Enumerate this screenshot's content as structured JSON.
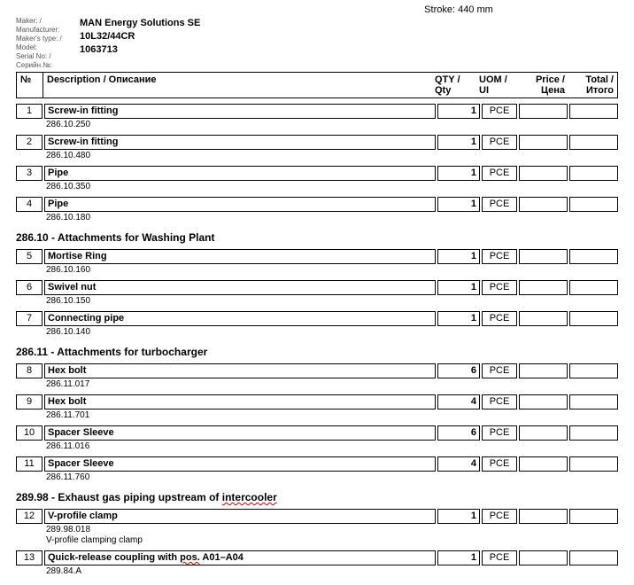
{
  "stroke": "Stroke: 440 mm",
  "meta": {
    "labels": {
      "maker": "Maker: /",
      "manufacturer": "Manufacturer:",
      "makers_type": "Maker's type: /",
      "model": "Model:",
      "serial_no": "Serial No: /",
      "serial_ru": "Серийн.№:"
    },
    "values": {
      "maker": "MAN Energy Solutions SE",
      "model": "10L32/44CR",
      "serial": "1063713"
    }
  },
  "header": {
    "no": "№",
    "desc": "Description / Описание",
    "qty": "QTY / Qty",
    "uom": "UOM / UI",
    "price": "Price / Цена",
    "total": "Total / Итого"
  },
  "sections": [
    {
      "title": null,
      "items": [
        {
          "no": "1",
          "desc": "Screw-in fitting",
          "code": "286.10.250",
          "qty": "1",
          "uom": "PCE"
        },
        {
          "no": "2",
          "desc": "Screw-in fitting",
          "code": "286.10.480",
          "qty": "1",
          "uom": "PCE"
        },
        {
          "no": "3",
          "desc": "Pipe",
          "code": "286.10.350",
          "qty": "1",
          "uom": "PCE"
        },
        {
          "no": "4",
          "desc": "Pipe",
          "code": "286.10.180",
          "qty": "1",
          "uom": "PCE"
        }
      ]
    },
    {
      "title": "286.10 - Attachments for Washing Plant",
      "items": [
        {
          "no": "5",
          "desc": "Mortise Ring",
          "code": "286.10.160",
          "qty": "1",
          "uom": "PCE"
        },
        {
          "no": "6",
          "desc": "Swivel nut",
          "code": "286.10.150",
          "qty": "1",
          "uom": "PCE"
        },
        {
          "no": "7",
          "desc": "Connecting pipe",
          "code": "286.10.140",
          "qty": "1",
          "uom": "PCE"
        }
      ]
    },
    {
      "title": "286.11 - Attachments for turbocharger",
      "items": [
        {
          "no": "8",
          "desc": "Hex bolt",
          "code": "286.11.017",
          "qty": "6",
          "uom": "PCE"
        },
        {
          "no": "9",
          "desc": "Hex bolt",
          "code": "286.11.701",
          "qty": "4",
          "uom": "PCE"
        },
        {
          "no": "10",
          "desc": "Spacer Sleeve",
          "code": "286.11.016",
          "qty": "6",
          "uom": "PCE"
        },
        {
          "no": "11",
          "desc": "Spacer Sleeve",
          "code": "286.11.760",
          "qty": "4",
          "uom": "PCE"
        }
      ]
    },
    {
      "title": "289.98 - Exhaust gas piping upstream of intercooler",
      "title_wavy": "intercooler",
      "items": [
        {
          "no": "12",
          "desc": "V-profile clamp",
          "code": "289.98.018",
          "note": "V-profile clamping clamp",
          "qty": "1",
          "uom": "PCE"
        },
        {
          "no": "13",
          "desc": "Quick-release coupling with pos. A01–A04",
          "desc_wavy": "pos.",
          "code": "289.84.A",
          "qty": "1",
          "uom": "PCE"
        }
      ]
    }
  ]
}
